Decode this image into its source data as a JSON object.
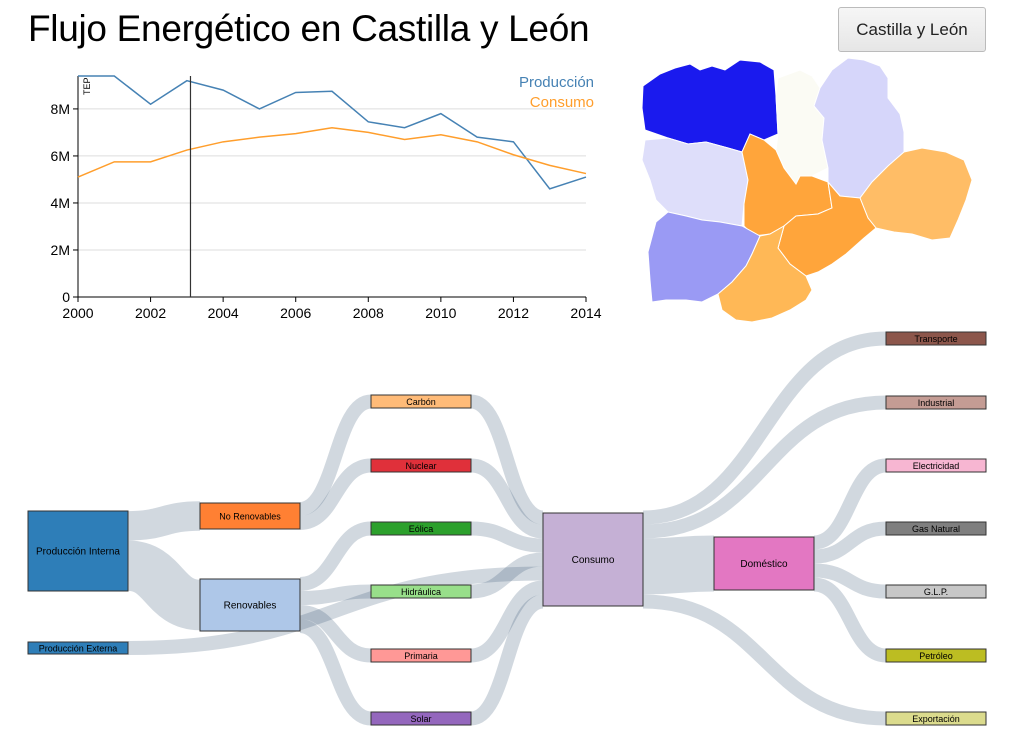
{
  "page": {
    "title": "Flujo Energético en Castilla y León"
  },
  "selector": {
    "label": "Castilla y León"
  },
  "chart_data": {
    "type": "line",
    "title": "",
    "xlabel": "",
    "ylabel": "TEP",
    "x": [
      2000,
      2001,
      2002,
      2003,
      2004,
      2005,
      2006,
      2007,
      2008,
      2009,
      2010,
      2011,
      2012,
      2013,
      2014
    ],
    "xlim": [
      2000,
      2014
    ],
    "ylim": [
      0,
      9400000
    ],
    "x_ticks": [
      "2000",
      "2002",
      "2004",
      "2006",
      "2008",
      "2010",
      "2012",
      "2014"
    ],
    "y_ticks": [
      "0",
      "2M",
      "4M",
      "6M",
      "8M"
    ],
    "grid": "horizontal",
    "legend_position": "top-right",
    "marker_year": 2003.1,
    "series": [
      {
        "name": "Producción",
        "color": "#4682b4",
        "values": [
          9400000,
          9400000,
          8200000,
          9200000,
          8800000,
          8000000,
          8700000,
          8750000,
          7450000,
          7200000,
          7800000,
          6800000,
          6600000,
          4600000,
          5100000
        ]
      },
      {
        "name": "Consumo",
        "color": "#ff9e2c",
        "values": [
          5100000,
          5750000,
          5750000,
          6250000,
          6600000,
          6800000,
          6950000,
          7200000,
          7000000,
          6700000,
          6900000,
          6600000,
          6050000,
          5600000,
          5250000
        ]
      }
    ]
  },
  "map": {
    "regions": [
      {
        "name": "León",
        "color": "#1a1aee"
      },
      {
        "name": "Palencia",
        "color": "#fbfbf4"
      },
      {
        "name": "Burgos",
        "color": "#d6d6fa"
      },
      {
        "name": "Zamora",
        "color": "#dedefa"
      },
      {
        "name": "Valladolid",
        "color": "#ffa53b"
      },
      {
        "name": "Soria",
        "color": "#ffbd66"
      },
      {
        "name": "Salamanca",
        "color": "#9a9af4"
      },
      {
        "name": "Segovia",
        "color": "#ffa53b"
      },
      {
        "name": "Ávila",
        "color": "#ffb856"
      }
    ]
  },
  "sankey": {
    "nodes": [
      {
        "id": "prod_int",
        "label": "Producción Interna",
        "color": "#2e7eb8"
      },
      {
        "id": "prod_ext",
        "label": "Producción Externa",
        "color": "#2e7eb8"
      },
      {
        "id": "no_renov",
        "label": "No Renovables",
        "color": "#ff8033"
      },
      {
        "id": "renov",
        "label": "Renovables",
        "color": "#aec7e8"
      },
      {
        "id": "carbon",
        "label": "Carbón",
        "color": "#ffbb78"
      },
      {
        "id": "nuclear",
        "label": "Nuclear",
        "color": "#e0303a"
      },
      {
        "id": "eolica",
        "label": "Eólica",
        "color": "#2ca02c"
      },
      {
        "id": "hidraulica",
        "label": "Hidráulica",
        "color": "#98df8a"
      },
      {
        "id": "primaria",
        "label": "Primaria",
        "color": "#ff9896"
      },
      {
        "id": "solar",
        "label": "Solar",
        "color": "#9467bd"
      },
      {
        "id": "consumo",
        "label": "Consumo",
        "color": "#c5b0d5"
      },
      {
        "id": "domestico",
        "label": "Doméstico",
        "color": "#e377c2"
      },
      {
        "id": "transporte",
        "label": "Transporte",
        "color": "#8c564b"
      },
      {
        "id": "industrial",
        "label": "Industrial",
        "color": "#c49c94"
      },
      {
        "id": "electricidad",
        "label": "Electricidad",
        "color": "#f7b6d2"
      },
      {
        "id": "gas_natural",
        "label": "Gas Natural",
        "color": "#7f7f7f"
      },
      {
        "id": "glp",
        "label": "G.L.P.",
        "color": "#c7c7c7"
      },
      {
        "id": "petroleo",
        "label": "Petróleo",
        "color": "#bcbd22"
      },
      {
        "id": "exportacion",
        "label": "Exportación",
        "color": "#dbdb8d"
      }
    ],
    "links": [
      {
        "source": "prod_int",
        "target": "no_renov",
        "value": 2.1
      },
      {
        "source": "prod_int",
        "target": "renov",
        "value": 3.6
      },
      {
        "source": "prod_ext",
        "target": "consumo",
        "value": 1.0
      },
      {
        "source": "no_renov",
        "target": "carbon",
        "value": 1.0
      },
      {
        "source": "no_renov",
        "target": "nuclear",
        "value": 1.0
      },
      {
        "source": "renov",
        "target": "eolica",
        "value": 1.0
      },
      {
        "source": "renov",
        "target": "hidraulica",
        "value": 1.0
      },
      {
        "source": "renov",
        "target": "primaria",
        "value": 1.0
      },
      {
        "source": "renov",
        "target": "solar",
        "value": 1.0
      },
      {
        "source": "carbon",
        "target": "consumo",
        "value": 1.0
      },
      {
        "source": "nuclear",
        "target": "consumo",
        "value": 1.0
      },
      {
        "source": "eolica",
        "target": "consumo",
        "value": 1.0
      },
      {
        "source": "hidraulica",
        "target": "consumo",
        "value": 1.0
      },
      {
        "source": "primaria",
        "target": "consumo",
        "value": 1.0
      },
      {
        "source": "solar",
        "target": "consumo",
        "value": 1.0
      },
      {
        "source": "consumo",
        "target": "transporte",
        "value": 1.0
      },
      {
        "source": "consumo",
        "target": "industrial",
        "value": 1.0
      },
      {
        "source": "consumo",
        "target": "domestico",
        "value": 4.0
      },
      {
        "source": "consumo",
        "target": "exportacion",
        "value": 1.0
      },
      {
        "source": "domestico",
        "target": "electricidad",
        "value": 1.0
      },
      {
        "source": "domestico",
        "target": "gas_natural",
        "value": 1.0
      },
      {
        "source": "domestico",
        "target": "glp",
        "value": 1.0
      },
      {
        "source": "domestico",
        "target": "petroleo",
        "value": 1.0
      }
    ]
  }
}
